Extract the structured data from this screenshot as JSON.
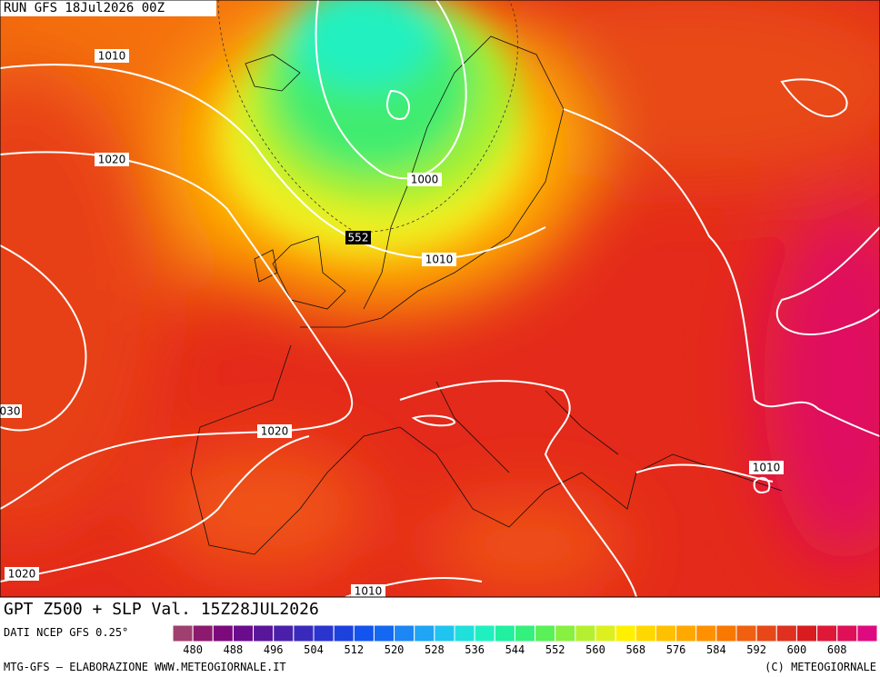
{
  "header": {
    "run": "RUN GFS 18Jul2026 00Z"
  },
  "map": {
    "contour_labels": [
      "1010",
      "1020",
      "030",
      "1000",
      "552",
      "1010",
      "1020",
      "1010",
      "1020",
      "1010"
    ]
  },
  "footer": {
    "title": "GPT Z500 + SLP Val. 15Z28JUL2026",
    "source": "DATI NCEP GFS 0.25°",
    "credit_left": "MTG-GFS – ELABORAZIONE WWW.METEOGIORNALE.IT",
    "credit_right": "(C) METEOGIORNALE"
  },
  "legend": {
    "ticks": [
      480,
      488,
      496,
      504,
      512,
      520,
      528,
      536,
      544,
      552,
      560,
      568,
      576,
      584,
      592,
      600,
      608
    ],
    "colors": [
      "#a04070",
      "#8c1a6e",
      "#7c0a7c",
      "#6a0c8c",
      "#5a169a",
      "#4a20aa",
      "#3a2abc",
      "#2a34ce",
      "#1c42de",
      "#1454ee",
      "#1468f2",
      "#1c86f4",
      "#20a4f4",
      "#20c4f0",
      "#20e0dc",
      "#20f0c0",
      "#20f0a0",
      "#34f07c",
      "#5af058",
      "#88f040",
      "#b4f030",
      "#dcf020",
      "#fff000",
      "#ffd800",
      "#ffc000",
      "#ffa800",
      "#ff9000",
      "#f87800",
      "#f06010",
      "#e84818",
      "#e03020",
      "#d81c20",
      "#e01838",
      "#e01058",
      "#e00a80"
    ]
  }
}
